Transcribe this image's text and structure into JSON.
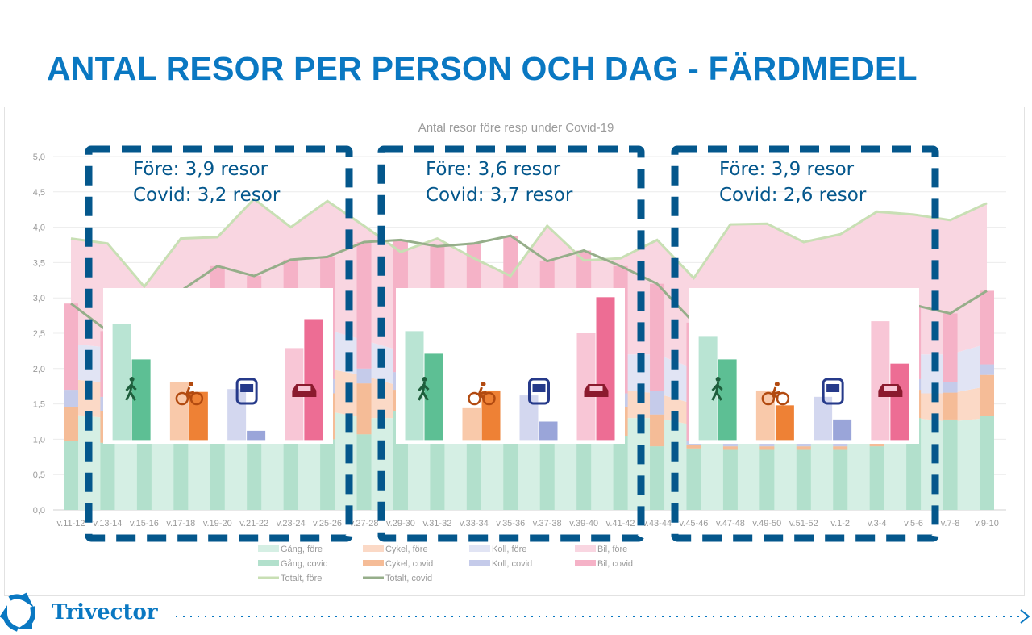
{
  "slide_title": "ANTAL RESOR PER PERSON OCH DAG - FÄRDMEDEL",
  "logo_text": "Trivector",
  "chart_data": {
    "type": "area+bar+line",
    "title": "Antal resor före resp under Covid-19",
    "ylim": [
      0,
      5
    ],
    "yticks": [
      "0,0",
      "0,5",
      "1,0",
      "1,5",
      "2,0",
      "2,5",
      "3,0",
      "3,5",
      "4,0",
      "4,5",
      "5,0"
    ],
    "grid": true,
    "legend_position": "bottom",
    "categories": [
      "v.11-12",
      "v.13-14",
      "v.15-16",
      "v.17-18",
      "v.19-20",
      "v.21-22",
      "v.23-24",
      "v.25-26",
      "v.27-28",
      "v.29-30",
      "v.31-32",
      "v.33-34",
      "v.35-36",
      "v.37-38",
      "v.39-40",
      "v.41-42",
      "v.43-44",
      "v.45-46",
      "v.47-48",
      "v.49-50",
      "v.51-52",
      "v.1-2",
      "v.3-4",
      "v.5-6",
      "v.7-8",
      "v.9-10"
    ],
    "series": [
      {
        "name": "Gång, före",
        "kind": "area",
        "color": "#d5efe4",
        "values": [
          1.35,
          1.3,
          1.1,
          1.3,
          1.3,
          1.4,
          1.35,
          1.4,
          1.3,
          1.3,
          1.35,
          1.3,
          1.2,
          1.35,
          1.3,
          1.3,
          1.3,
          1.2,
          1.3,
          1.3,
          1.25,
          1.25,
          1.3,
          1.3,
          1.25,
          1.3
        ]
      },
      {
        "name": "Cykel, före",
        "kind": "area",
        "color": "#fbd9c6",
        "values": [
          0.5,
          0.5,
          0.4,
          0.5,
          0.5,
          0.6,
          0.55,
          0.6,
          0.6,
          0.45,
          0.5,
          0.45,
          0.4,
          0.5,
          0.45,
          0.4,
          0.35,
          0.3,
          0.3,
          0.3,
          0.3,
          0.3,
          0.3,
          0.35,
          0.4,
          0.45
        ]
      },
      {
        "name": "Koll, före",
        "kind": "area",
        "color": "#e1e4f4",
        "values": [
          0.5,
          0.5,
          0.45,
          0.5,
          0.5,
          0.55,
          0.5,
          0.55,
          0.5,
          0.5,
          0.5,
          0.5,
          0.45,
          0.5,
          0.5,
          0.5,
          0.55,
          0.5,
          0.55,
          0.55,
          0.5,
          0.5,
          0.55,
          0.55,
          0.55,
          0.6
        ]
      },
      {
        "name": "Bil, före",
        "kind": "area",
        "color": "#f9d6e1",
        "values": [
          1.49,
          1.47,
          1.21,
          1.54,
          1.56,
          1.85,
          1.6,
          1.82,
          1.62,
          1.4,
          1.49,
          1.31,
          1.26,
          1.67,
          1.28,
          1.36,
          1.62,
          1.28,
          1.89,
          1.9,
          1.74,
          1.85,
          2.07,
          1.98,
          1.9,
          1.99
        ]
      },
      {
        "name": "Gång, covid",
        "kind": "bar",
        "color": "#b2e0cc",
        "values": [
          0.98,
          0.95,
          1.0,
          1.05,
          1.1,
          1.0,
          1.05,
          1.0,
          1.07,
          1.4,
          1.2,
          1.1,
          1.1,
          1.0,
          1.0,
          1.05,
          0.9,
          0.87,
          0.85,
          0.85,
          0.85,
          0.85,
          0.9,
          1.3,
          1.28,
          1.33
        ]
      },
      {
        "name": "Cykel, covid",
        "kind": "bar",
        "color": "#f5bc97",
        "values": [
          0.47,
          0.45,
          0.45,
          0.5,
          0.55,
          0.55,
          0.6,
          0.65,
          0.72,
          0.3,
          0.4,
          0.4,
          0.45,
          0.45,
          0.45,
          0.4,
          0.45,
          0.05,
          0.05,
          0.05,
          0.05,
          0.05,
          0.05,
          0.4,
          0.38,
          0.58
        ]
      },
      {
        "name": "Koll, covid",
        "kind": "bar",
        "color": "#c5cbea",
        "values": [
          0.25,
          0.2,
          0.2,
          0.2,
          0.2,
          0.2,
          0.2,
          0.2,
          0.21,
          0.25,
          0.2,
          0.2,
          0.2,
          0.2,
          0.2,
          0.2,
          0.33,
          0.05,
          0.05,
          0.05,
          0.05,
          0.05,
          0.05,
          0.15,
          0.15,
          0.15
        ]
      },
      {
        "name": "Bil, covid",
        "kind": "bar",
        "color": "#f5b2c7",
        "values": [
          1.22,
          0.93,
          1.15,
          1.35,
          1.6,
          1.56,
          1.69,
          1.73,
          1.79,
          1.87,
          1.93,
          2.07,
          2.13,
          1.87,
          2.02,
          1.8,
          1.52,
          1.68,
          1.55,
          1.55,
          1.55,
          1.55,
          1.6,
          1.05,
          0.97,
          1.04
        ]
      },
      {
        "name": "Totalt, före",
        "kind": "line",
        "color": "#c8dfb4",
        "values": [
          3.84,
          3.77,
          3.16,
          3.84,
          3.86,
          4.4,
          4.0,
          4.37,
          4.02,
          3.65,
          3.84,
          3.56,
          3.31,
          4.02,
          3.53,
          3.56,
          3.82,
          3.28,
          4.04,
          4.05,
          3.79,
          3.9,
          4.22,
          4.18,
          4.1,
          4.34
        ]
      },
      {
        "name": "Totalt, covid",
        "kind": "line",
        "color": "#96ae8a",
        "values": [
          2.92,
          2.53,
          2.8,
          3.1,
          3.45,
          3.31,
          3.54,
          3.58,
          3.79,
          3.82,
          3.73,
          3.77,
          3.88,
          3.52,
          3.67,
          3.45,
          3.2,
          2.65,
          2.6,
          2.6,
          2.6,
          2.6,
          2.65,
          2.9,
          2.78,
          3.1
        ]
      }
    ],
    "period_boxes": [
      {
        "line1": "Före: 3,9 resor",
        "line2": "Covid: 3,2 resor",
        "from": "v.13-14",
        "to": "v.25-26",
        "inset": {
          "gang": [
            2.63,
            2.13
          ],
          "cykel": [
            1.81,
            1.67
          ],
          "koll": [
            1.71,
            1.12
          ],
          "bil": [
            2.29,
            2.7
          ]
        }
      },
      {
        "line1": "Före: 3,6 resor",
        "line2": "Covid: 3,7 resor",
        "from": "v.29-30",
        "to": "v.41-42",
        "inset": {
          "gang": [
            2.53,
            2.21
          ],
          "cykel": [
            1.44,
            1.69
          ],
          "koll": [
            1.62,
            1.25
          ],
          "bil": [
            2.5,
            3.01
          ]
        }
      },
      {
        "line1": "Före: 3,9 resor",
        "line2": "Covid: 2,6 resor",
        "from": "v.45-46",
        "to": "v.5-6",
        "inset": {
          "gang": [
            2.45,
            2.13
          ],
          "cykel": [
            1.69,
            1.48
          ],
          "koll": [
            1.6,
            1.28
          ],
          "bil": [
            2.67,
            2.07
          ]
        }
      }
    ],
    "inset_colors": {
      "gang": [
        "#b9e4d3",
        "#5dbf94"
      ],
      "cykel": [
        "#f9c9aa",
        "#ee8135"
      ],
      "koll": [
        "#d3d7ef",
        "#9aa5d9"
      ],
      "bil": [
        "#f8c6d6",
        "#ed6d94"
      ]
    },
    "inset_icons": {
      "gang": "walking-person-icon",
      "cykel": "bicycle-icon",
      "koll": "bus-icon",
      "bil": "car-icon"
    },
    "box_color": "#04578c"
  }
}
